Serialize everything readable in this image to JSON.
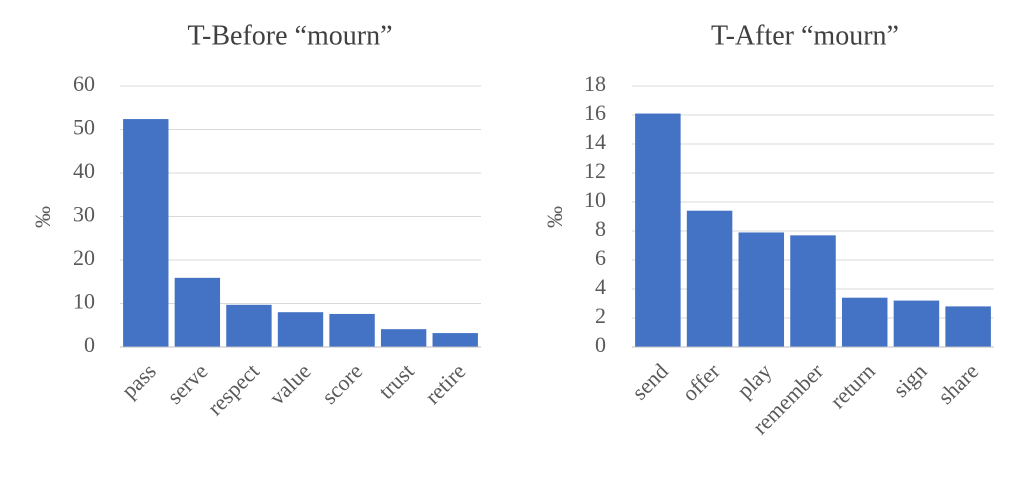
{
  "chart_data": [
    {
      "type": "bar",
      "title": "T-Before “mourn”",
      "y_label": "‰",
      "categories": [
        "pass",
        "serve",
        "respect",
        "value",
        "score",
        "trust",
        "retire"
      ],
      "values": [
        52.4,
        15.9,
        9.7,
        8.0,
        7.6,
        4.1,
        3.2
      ],
      "color": "#4472c4",
      "ylim": [
        0,
        60
      ],
      "yticks": [
        0,
        10,
        20,
        30,
        40,
        50,
        60
      ],
      "grid": true
    },
    {
      "type": "bar",
      "title": "T-After “mourn”",
      "y_label": "‰",
      "categories": [
        "send",
        "offer",
        "play",
        "remember",
        "return",
        "sign",
        "share"
      ],
      "values": [
        16.1,
        9.4,
        7.9,
        7.7,
        3.4,
        3.2,
        2.8
      ],
      "color": "#4472c4",
      "ylim": [
        0,
        18
      ],
      "yticks": [
        0,
        2,
        4,
        6,
        8,
        10,
        12,
        14,
        16,
        18
      ],
      "grid": true
    }
  ]
}
